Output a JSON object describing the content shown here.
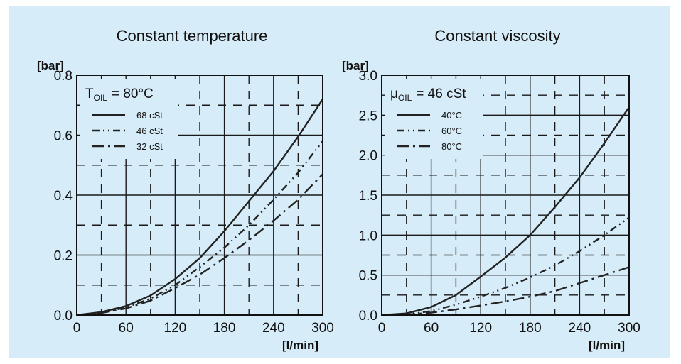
{
  "colors": {
    "background": "#d6ecf8",
    "ink": "#222222"
  },
  "chart_data": [
    {
      "type": "line",
      "title": "Constant temperature",
      "ylabel": "[bar]",
      "xlabel": "[l/min]",
      "xlim": [
        0,
        300
      ],
      "ylim": [
        0,
        0.8
      ],
      "xticks": [
        "0",
        "60",
        "120",
        "180",
        "240",
        "300"
      ],
      "yticks": [
        "0.0",
        "0.2",
        "0.4",
        "0.6",
        "0.8"
      ],
      "grid": true,
      "legend": {
        "heading": "T",
        "heading_sub": "OIL",
        "heading_value": "= 80°C",
        "placement": "top-left"
      },
      "series": [
        {
          "name": "68 cSt",
          "style": "solid",
          "x": [
            0,
            30,
            60,
            90,
            120,
            150,
            180,
            210,
            240,
            270,
            300
          ],
          "y": [
            0,
            0.01,
            0.03,
            0.065,
            0.12,
            0.19,
            0.28,
            0.38,
            0.48,
            0.595,
            0.72
          ]
        },
        {
          "name": "46 cSt",
          "style": "dash-dot-dot",
          "x": [
            0,
            30,
            60,
            90,
            120,
            150,
            180,
            210,
            240,
            270,
            300
          ],
          "y": [
            0,
            0.008,
            0.025,
            0.055,
            0.1,
            0.16,
            0.225,
            0.3,
            0.385,
            0.475,
            0.58
          ]
        },
        {
          "name": "32 cSt",
          "style": "dash-dot",
          "x": [
            0,
            30,
            60,
            90,
            120,
            150,
            180,
            210,
            240,
            270,
            300
          ],
          "y": [
            0,
            0.007,
            0.022,
            0.048,
            0.09,
            0.135,
            0.19,
            0.25,
            0.315,
            0.385,
            0.47
          ]
        }
      ]
    },
    {
      "type": "line",
      "title": "Constant viscosity",
      "ylabel": "[bar]",
      "xlabel": "[l/min]",
      "xlim": [
        0,
        300
      ],
      "ylim": [
        0,
        3.0
      ],
      "xticks": [
        "0",
        "60",
        "120",
        "180",
        "240",
        "300"
      ],
      "yticks": [
        "0.0",
        "0.5",
        "1.0",
        "1.5",
        "2.0",
        "2.5",
        "3.0"
      ],
      "grid": true,
      "legend": {
        "heading": "μ",
        "heading_sub": "OIL",
        "heading_value": "= 46 cSt",
        "placement": "top-left"
      },
      "series": [
        {
          "name": "40°C",
          "style": "solid",
          "x": [
            0,
            30,
            60,
            90,
            120,
            150,
            180,
            210,
            240,
            270,
            300
          ],
          "y": [
            0,
            0.02,
            0.1,
            0.25,
            0.48,
            0.72,
            1.0,
            1.35,
            1.72,
            2.15,
            2.6
          ]
        },
        {
          "name": "60°C",
          "style": "dash-dot-dot",
          "x": [
            0,
            30,
            60,
            90,
            120,
            150,
            180,
            210,
            240,
            270,
            300
          ],
          "y": [
            0,
            0.01,
            0.05,
            0.13,
            0.23,
            0.34,
            0.47,
            0.62,
            0.8,
            1.0,
            1.22
          ]
        },
        {
          "name": "80°C",
          "style": "dash-dot",
          "x": [
            0,
            30,
            60,
            90,
            120,
            150,
            180,
            210,
            240,
            270,
            300
          ],
          "y": [
            0,
            0.005,
            0.03,
            0.07,
            0.12,
            0.17,
            0.23,
            0.3,
            0.4,
            0.5,
            0.6
          ]
        }
      ]
    }
  ]
}
